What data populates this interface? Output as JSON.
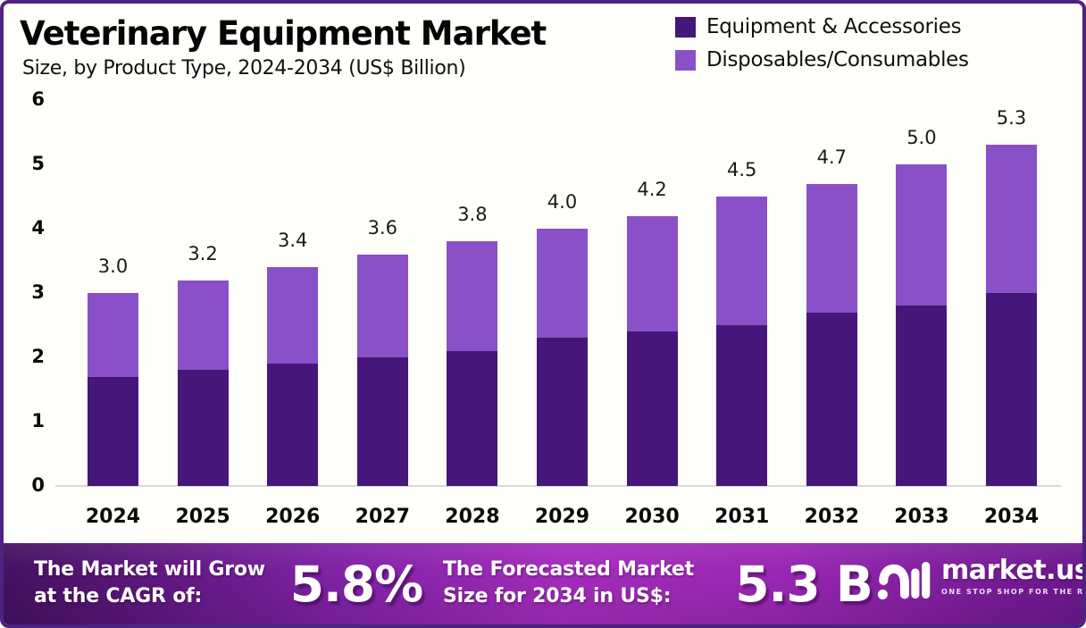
{
  "header": {
    "title": "Veterinary Equipment Market",
    "subtitle": "Size, by Product Type, 2024-2034 (US$ Billion)"
  },
  "legend": {
    "items": [
      {
        "label": "Equipment & Accessories",
        "color": "#46167A"
      },
      {
        "label": "Disposables/Consumables",
        "color": "#8A50C7"
      }
    ]
  },
  "chart_data": {
    "type": "bar",
    "stacked": true,
    "title": "Veterinary Equipment Market Size, by Product Type, 2024-2034 (US$ Billion)",
    "categories": [
      "2024",
      "2025",
      "2026",
      "2027",
      "2028",
      "2029",
      "2030",
      "2031",
      "2032",
      "2033",
      "2034"
    ],
    "series": [
      {
        "name": "Equipment & Accessories",
        "color": "#46167A",
        "values": [
          1.7,
          1.8,
          1.9,
          2.0,
          2.1,
          2.3,
          2.4,
          2.5,
          2.7,
          2.8,
          3.0
        ]
      },
      {
        "name": "Disposables/Consumables",
        "color": "#8A50C7",
        "values": [
          1.3,
          1.4,
          1.5,
          1.6,
          1.7,
          1.7,
          1.8,
          2.0,
          2.0,
          2.2,
          2.3
        ]
      }
    ],
    "totals": [
      "3.0",
      "3.2",
      "3.4",
      "3.6",
      "3.8",
      "4.0",
      "4.2",
      "4.5",
      "4.7",
      "5.0",
      "5.3"
    ],
    "xlabel": "",
    "ylabel": "",
    "ylim": [
      0,
      6
    ],
    "yticks": [
      0,
      1,
      2,
      3,
      4,
      5,
      6
    ],
    "grid": false,
    "legend_position": "top-right",
    "axis_line_color": "#D9D9D9"
  },
  "footer": {
    "cagr": {
      "line1": "The Market will Grow",
      "line2": "at the CAGR of:",
      "value": "5.8%"
    },
    "forecast": {
      "line1": "The Forecasted Market",
      "line2": "Size for 2034 in US$:",
      "value": "5.3 B"
    },
    "brand": {
      "name": "market.us",
      "tagline": "ONE STOP SHOP FOR THE REPORTS"
    }
  },
  "frame": {
    "border_color": "#4E2280",
    "background": "#FEFEFB"
  }
}
